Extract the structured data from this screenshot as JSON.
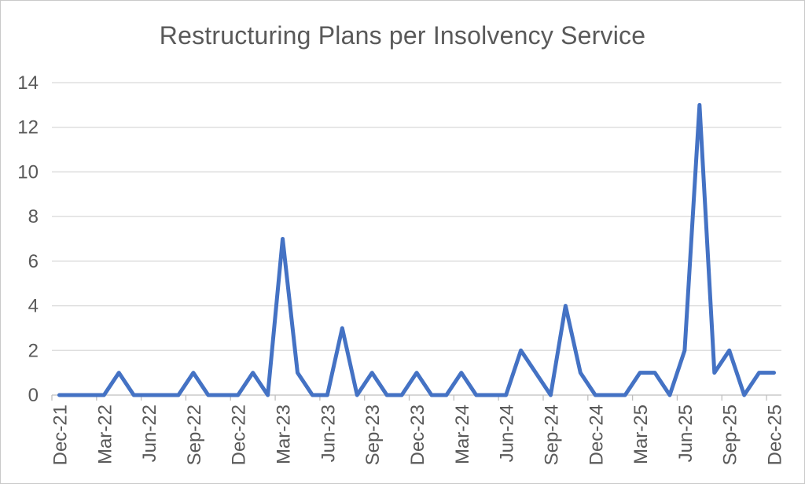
{
  "chart_data": {
    "type": "line",
    "title": "Restructuring Plans per Insolvency Service",
    "x": [
      "Dec-21",
      "Jan-22",
      "Feb-22",
      "Mar-22",
      "Apr-22",
      "May-22",
      "Jun-22",
      "Jul-22",
      "Aug-22",
      "Sep-22",
      "Oct-22",
      "Nov-22",
      "Dec-22",
      "Jan-23",
      "Feb-23",
      "Mar-23",
      "Apr-23",
      "May-23",
      "Jun-23",
      "Jul-23",
      "Aug-23",
      "Sep-23",
      "Oct-23",
      "Nov-23",
      "Dec-23",
      "Jan-24",
      "Feb-24",
      "Mar-24",
      "Apr-24",
      "May-24",
      "Jun-24",
      "Jul-24",
      "Aug-24",
      "Sep-24",
      "Oct-24",
      "Nov-24",
      "Dec-24",
      "Jan-25",
      "Feb-25",
      "Mar-25",
      "Apr-25",
      "May-25",
      "Jun-25",
      "Jul-25",
      "Aug-25",
      "Sep-25",
      "Oct-25",
      "Nov-25",
      "Dec-25"
    ],
    "values": [
      0,
      0,
      0,
      0,
      1,
      0,
      0,
      0,
      0,
      1,
      0,
      0,
      0,
      1,
      0,
      7,
      1,
      0,
      0,
      3,
      0,
      1,
      0,
      0,
      1,
      0,
      0,
      1,
      0,
      0,
      0,
      2,
      1,
      0,
      4,
      1,
      0,
      0,
      0,
      1,
      1,
      0,
      2,
      13,
      1,
      2,
      0,
      1,
      1
    ],
    "x_tick_labels": [
      "Dec-21",
      "Mar-22",
      "Jun-22",
      "Sep-22",
      "Dec-22",
      "Mar-23",
      "Jun-23",
      "Sep-23",
      "Dec-23",
      "Mar-24",
      "Jun-24",
      "Sep-24",
      "Dec-24",
      "Mar-25",
      "Jun-25",
      "Sep-25",
      "Dec-25"
    ],
    "x_label_every": 3,
    "y_tick_labels": [
      "0",
      "2",
      "4",
      "6",
      "8",
      "10",
      "12",
      "14"
    ],
    "ylim": [
      0,
      14
    ],
    "y_tick_step": 2,
    "xlabel": "",
    "ylabel": "",
    "legend": "none",
    "grid": "horizontal",
    "x_labels_rotation_deg": -90,
    "line_color": "#4472C4",
    "line_width": 5,
    "title_color": "#595959",
    "axis_label_color": "#595959",
    "gridline_color": "#D9D9D9",
    "axis_line_color": "#BFBFBF"
  }
}
